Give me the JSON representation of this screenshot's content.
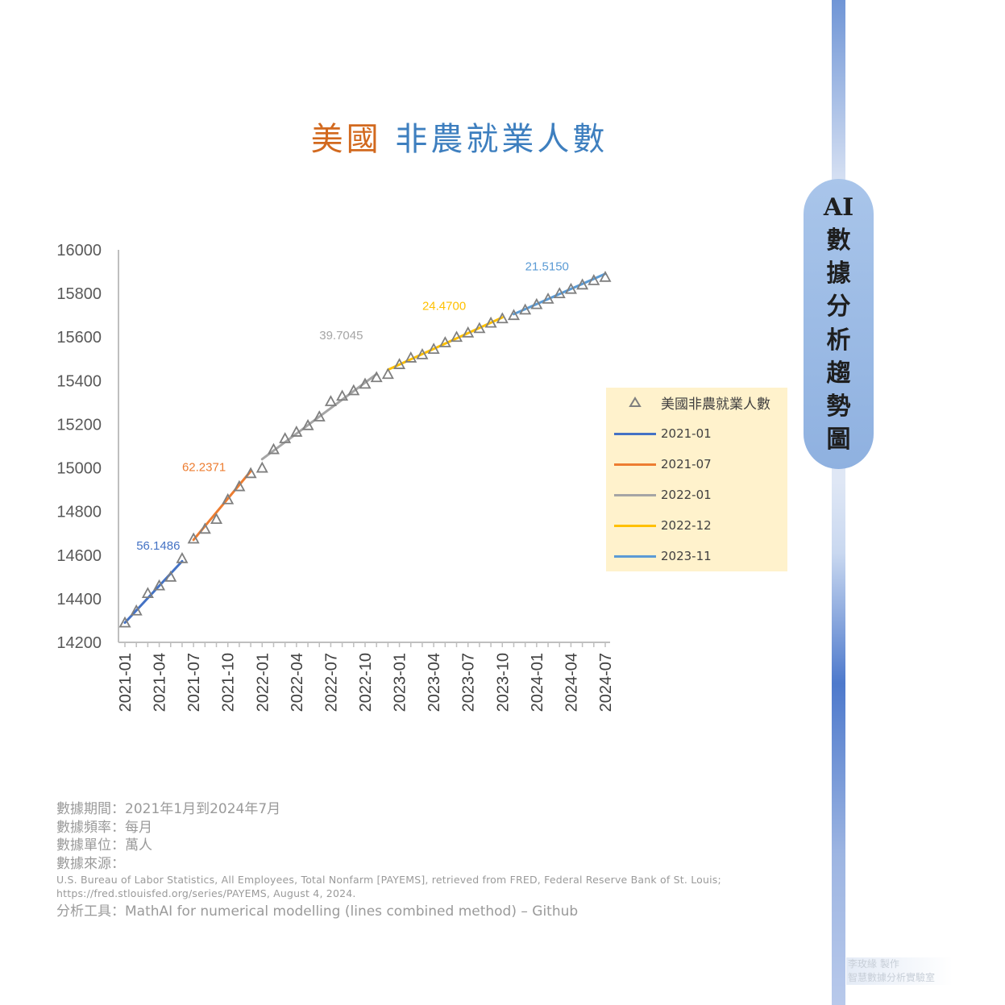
{
  "title": {
    "part1": "美國",
    "part2": "非農就業人數"
  },
  "chart_data": {
    "type": "line",
    "y_ticks": [
      "16000",
      "15800",
      "15600",
      "15400",
      "15200",
      "15000",
      "14800",
      "14600",
      "14400",
      "14200"
    ],
    "ylim": [
      14200,
      16000
    ],
    "x_ticks": [
      "2021-01",
      "2021-04",
      "2021-07",
      "2021-10",
      "2022-01",
      "2022-04",
      "2022-07",
      "2022-10",
      "2023-01",
      "2023-04",
      "2023-07",
      "2023-10",
      "2024-01",
      "2024-04",
      "2024-07"
    ],
    "x": [
      "2021-01",
      "2021-02",
      "2021-03",
      "2021-04",
      "2021-05",
      "2021-06",
      "2021-07",
      "2021-08",
      "2021-09",
      "2021-10",
      "2021-11",
      "2021-12",
      "2022-01",
      "2022-02",
      "2022-03",
      "2022-04",
      "2022-05",
      "2022-06",
      "2022-07",
      "2022-08",
      "2022-09",
      "2022-10",
      "2022-11",
      "2022-12",
      "2023-01",
      "2023-02",
      "2023-03",
      "2023-04",
      "2023-05",
      "2023-06",
      "2023-07",
      "2023-08",
      "2023-09",
      "2023-10",
      "2023-11",
      "2023-12",
      "2024-01",
      "2024-02",
      "2024-03",
      "2024-04",
      "2024-05",
      "2024-06",
      "2024-07"
    ],
    "points": {
      "name": "美國非農就業人數",
      "color": "#7f7f7f",
      "values": [
        14290,
        14345,
        14425,
        14460,
        14500,
        14585,
        14675,
        14720,
        14765,
        14855,
        14915,
        14975,
        15000,
        15085,
        15135,
        15165,
        15195,
        15235,
        15305,
        15330,
        15355,
        15385,
        15415,
        15430,
        15475,
        15505,
        15520,
        15545,
        15575,
        15600,
        15620,
        15640,
        15665,
        15685,
        15700,
        15725,
        15750,
        15775,
        15800,
        15820,
        15840,
        15860,
        15875
      ]
    },
    "series": [
      {
        "name": "2021-01",
        "color": "#4472c4",
        "start": [
          "2021-01",
          14290
        ],
        "end": [
          "2021-06",
          14572
        ],
        "slope": "56.1486"
      },
      {
        "name": "2021-07",
        "color": "#ed7d31",
        "start": [
          "2021-07",
          14670
        ],
        "end": [
          "2021-12",
          14985
        ],
        "slope": "62.2371"
      },
      {
        "name": "2022-01",
        "color": "#a5a5a5",
        "start": [
          "2022-01",
          15040
        ],
        "end": [
          "2022-11",
          15430
        ],
        "slope": "39.7045"
      },
      {
        "name": "2022-12",
        "color": "#ffc000",
        "start": [
          "2022-12",
          15450
        ],
        "end": [
          "2023-10",
          15690
        ],
        "slope": "24.4700"
      },
      {
        "name": "2023-11",
        "color": "#5b9bd5",
        "start": [
          "2023-11",
          15705
        ],
        "end": [
          "2024-07",
          15890
        ],
        "slope": "21.5150"
      }
    ],
    "annotations": [
      {
        "text": "56.1486",
        "color": "#4472c4",
        "at": [
          "2021-02",
          14625
        ]
      },
      {
        "text": "62.2371",
        "color": "#ed7d31",
        "at": [
          "2021-06",
          14985
        ]
      },
      {
        "text": "39.7045",
        "color": "#a5a5a5",
        "at": [
          "2022-06",
          15590
        ]
      },
      {
        "text": "24.4700",
        "color": "#ffc000",
        "at": [
          "2023-03",
          15725
        ]
      },
      {
        "text": "21.5150",
        "color": "#5b9bd5",
        "at": [
          "2023-12",
          15905
        ]
      }
    ],
    "legend_position": "right"
  },
  "sidebar": {
    "chars": [
      "AI",
      "數",
      "據",
      "分",
      "析",
      "趨",
      "勢",
      "圖"
    ]
  },
  "footer": {
    "period": "數據期間：2021年1月到2024年7月",
    "frequency": "數據頻率：每月",
    "unit": "數據單位：萬人",
    "source_label": "數據來源：",
    "source_line1": "U.S. Bureau of Labor Statistics, All Employees, Total Nonfarm [PAYEMS], retrieved from FRED, Federal Reserve Bank of St. Louis;",
    "source_line2": "https://fred.stlouisfed.org/series/PAYEMS, August 4, 2024.",
    "tool": "分析工具：MathAI for numerical modelling (lines combined method) – Github"
  },
  "watermark": {
    "line1": "李玫緣 製作",
    "line2": "智慧數據分析實驗室"
  }
}
